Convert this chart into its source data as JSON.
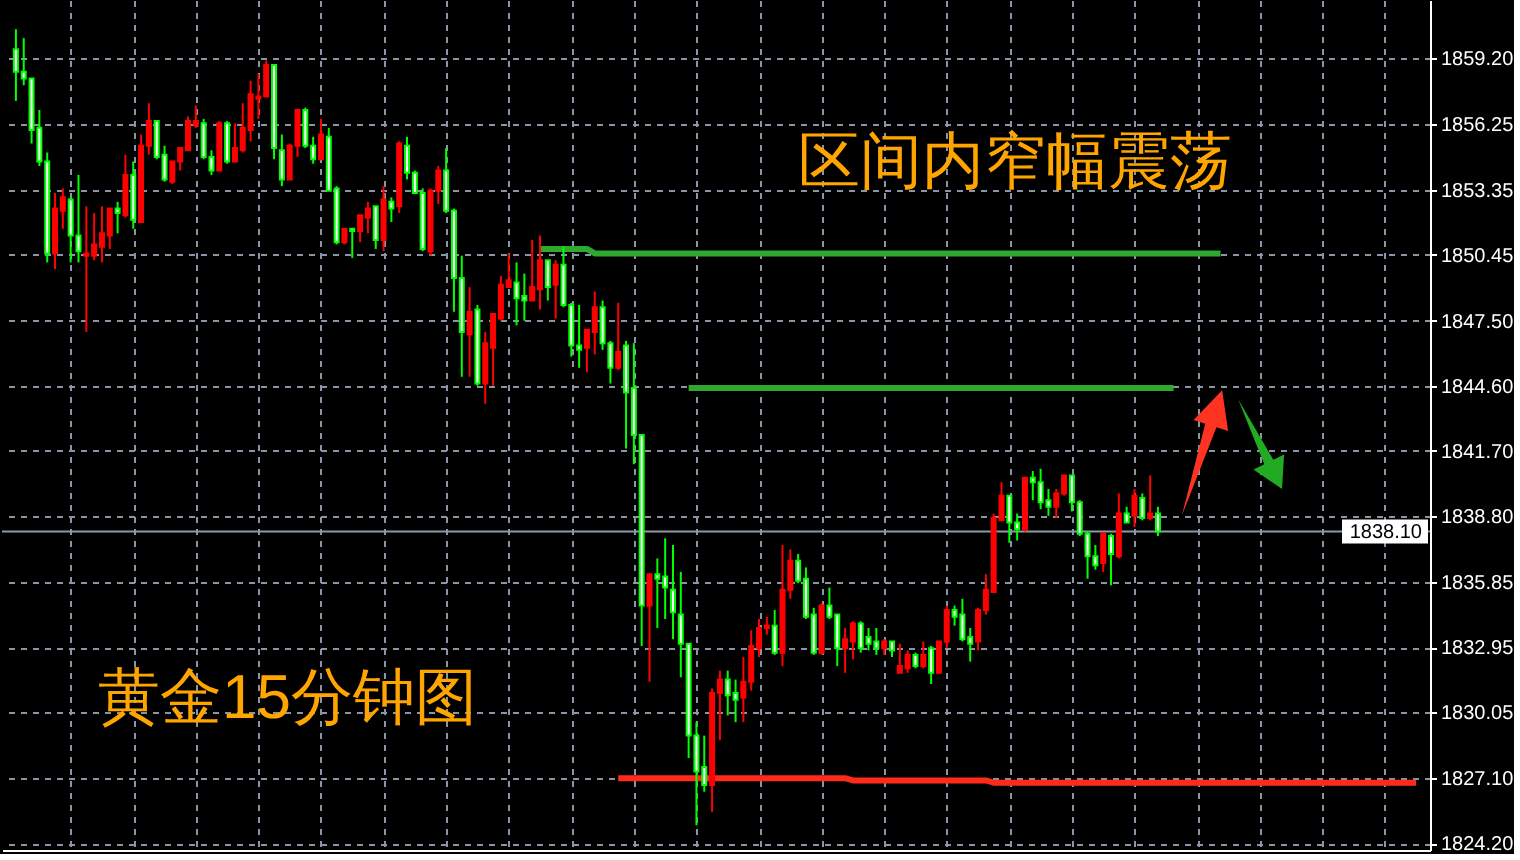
{
  "chart_data": {
    "type": "candlestick",
    "title": "黄金15分钟图",
    "annotations": [
      "区间内窄幅震荡"
    ],
    "categories": [
      null,
      null,
      null,
      null,
      null,
      null,
      null,
      null,
      null,
      null,
      null,
      null,
      null,
      null,
      null,
      null,
      null,
      null,
      null,
      null,
      null,
      null,
      null,
      null,
      null,
      null,
      null,
      null,
      null,
      null,
      null,
      null,
      null,
      null,
      null,
      null,
      null,
      null,
      null,
      null,
      null,
      null,
      null,
      null,
      null,
      null,
      null,
      null,
      null,
      null,
      null,
      null,
      null,
      null,
      null,
      null,
      null,
      null,
      null,
      null,
      null,
      null,
      null,
      null,
      null,
      null,
      null,
      null,
      null,
      null,
      null,
      null,
      null,
      null,
      null,
      null,
      null,
      null,
      null,
      null,
      null,
      null,
      null,
      null,
      null,
      null,
      null,
      null,
      null,
      null,
      null,
      null,
      null,
      null,
      null,
      null,
      null,
      null,
      null,
      null,
      null,
      null,
      null,
      null,
      null,
      null,
      null,
      null,
      null,
      null,
      null,
      null,
      null,
      null,
      null,
      null,
      null,
      null,
      null,
      null,
      null,
      null,
      null,
      null,
      null,
      null,
      null,
      null,
      null,
      null,
      null,
      null,
      null,
      null,
      null,
      null,
      null,
      null,
      null,
      null,
      null,
      null,
      null,
      null,
      null,
      null,
      null,
      null,
      null,
      null,
      null,
      null,
      null,
      null,
      null,
      null,
      null,
      null,
      null,
      null,
      null,
      null,
      null,
      null,
      null,
      null,
      null,
      null,
      null,
      null,
      null,
      null,
      null,
      null,
      null,
      null,
      null,
      null,
      null,
      null
    ],
    "ohlc": [
      [
        1859.6,
        1860.5,
        1857.3,
        1858.6
      ],
      [
        1858.6,
        1860.1,
        1858.0,
        1858.3
      ],
      [
        1858.3,
        1858.3,
        1855.4,
        1856.0
      ],
      [
        1856.1,
        1856.9,
        1854.4,
        1854.6
      ],
      [
        1854.6,
        1855.0,
        1850.1,
        1850.5
      ],
      [
        1850.5,
        1853.2,
        1849.8,
        1852.5
      ],
      [
        1852.4,
        1853.4,
        1851.6,
        1853.0
      ],
      [
        1852.9,
        1853.0,
        1850.1,
        1851.3
      ],
      [
        1851.3,
        1854.0,
        1850.1,
        1850.6
      ],
      [
        1850.4,
        1852.6,
        1847.0,
        1850.5
      ],
      [
        1850.4,
        1852.3,
        1850.2,
        1850.9
      ],
      [
        1850.8,
        1852.6,
        1850.1,
        1851.4
      ],
      [
        1851.3,
        1852.5,
        1850.7,
        1852.5
      ],
      [
        1852.5,
        1852.8,
        1851.4,
        1852.3
      ],
      [
        1852.2,
        1854.9,
        1852.1,
        1854.0
      ],
      [
        1854.0,
        1854.6,
        1851.6,
        1852.0
      ],
      [
        1851.9,
        1855.8,
        1851.9,
        1855.3
      ],
      [
        1855.3,
        1857.2,
        1854.9,
        1856.4
      ],
      [
        1856.4,
        1856.4,
        1854.7,
        1854.8
      ],
      [
        1854.9,
        1855.3,
        1853.7,
        1853.8
      ],
      [
        1853.7,
        1854.6,
        1853.6,
        1854.6
      ],
      [
        1854.6,
        1855.2,
        1854.2,
        1855.2
      ],
      [
        1855.1,
        1856.6,
        1855.1,
        1856.4
      ],
      [
        1856.2,
        1857.1,
        1856.1,
        1856.4
      ],
      [
        1856.3,
        1856.5,
        1854.7,
        1854.8
      ],
      [
        1854.8,
        1855.1,
        1854.0,
        1854.2
      ],
      [
        1854.2,
        1856.4,
        1854.2,
        1856.3
      ],
      [
        1856.3,
        1856.4,
        1854.5,
        1854.6
      ],
      [
        1854.6,
        1856.3,
        1854.6,
        1855.2
      ],
      [
        1855.1,
        1857.2,
        1855.0,
        1856.1
      ],
      [
        1856.0,
        1858.2,
        1855.5,
        1857.6
      ],
      [
        1857.4,
        1858.5,
        1856.5,
        1857.5
      ],
      [
        1857.5,
        1859.1,
        1857.5,
        1858.9
      ],
      [
        1858.9,
        1858.9,
        1854.7,
        1855.2
      ],
      [
        1855.1,
        1855.8,
        1853.5,
        1853.8
      ],
      [
        1853.8,
        1855.4,
        1853.8,
        1855.3
      ],
      [
        1855.3,
        1856.9,
        1854.8,
        1856.9
      ],
      [
        1856.9,
        1857.0,
        1855.2,
        1855.3
      ],
      [
        1855.3,
        1855.7,
        1854.5,
        1854.7
      ],
      [
        1854.7,
        1856.5,
        1854.7,
        1855.8
      ],
      [
        1855.7,
        1856.1,
        1853.3,
        1853.3
      ],
      [
        1853.4,
        1853.5,
        1850.9,
        1851.0
      ],
      [
        1851.0,
        1851.6,
        1850.9,
        1851.6
      ],
      [
        1851.6,
        1851.6,
        1850.3,
        1851.5
      ],
      [
        1851.5,
        1852.2,
        1851.0,
        1852.2
      ],
      [
        1852.1,
        1852.8,
        1851.4,
        1852.5
      ],
      [
        1852.6,
        1852.6,
        1850.7,
        1851.1
      ],
      [
        1851.1,
        1853.5,
        1850.6,
        1852.9
      ],
      [
        1852.8,
        1853.0,
        1851.9,
        1852.5
      ],
      [
        1852.6,
        1855.5,
        1852.3,
        1855.4
      ],
      [
        1855.3,
        1855.7,
        1853.8,
        1854.1
      ],
      [
        1854.1,
        1854.2,
        1853.2,
        1853.2
      ],
      [
        1853.2,
        1853.4,
        1850.6,
        1850.7
      ],
      [
        1850.6,
        1853.4,
        1850.4,
        1853.3
      ],
      [
        1853.3,
        1854.4,
        1852.7,
        1854.2
      ],
      [
        1854.2,
        1855.2,
        1852.3,
        1852.4
      ],
      [
        1852.4,
        1852.5,
        1847.9,
        1849.4
      ],
      [
        1849.4,
        1850.4,
        1845.0,
        1847.0
      ],
      [
        1846.9,
        1849.0,
        1845.0,
        1847.9
      ],
      [
        1848.0,
        1848.2,
        1844.6,
        1844.7
      ],
      [
        1844.7,
        1847.0,
        1843.8,
        1846.5
      ],
      [
        1846.3,
        1847.8,
        1844.6,
        1847.8
      ],
      [
        1847.6,
        1849.5,
        1847.5,
        1849.1
      ],
      [
        1849.0,
        1850.5,
        1849.0,
        1849.3
      ],
      [
        1849.2,
        1850.1,
        1847.3,
        1848.5
      ],
      [
        1848.6,
        1849.6,
        1847.5,
        1848.4
      ],
      [
        1848.4,
        1851.1,
        1848.4,
        1849.0
      ],
      [
        1848.9,
        1851.3,
        1848.0,
        1850.2
      ],
      [
        1850.2,
        1850.2,
        1848.4,
        1849.0
      ],
      [
        1849.1,
        1850.2,
        1847.6,
        1850.0
      ],
      [
        1850.0,
        1850.8,
        1848.1,
        1848.2
      ],
      [
        1848.2,
        1848.3,
        1845.9,
        1846.4
      ],
      [
        1846.4,
        1848.2,
        1845.4,
        1846.2
      ],
      [
        1846.3,
        1847.1,
        1845.2,
        1847.1
      ],
      [
        1847.0,
        1848.8,
        1846.0,
        1848.1
      ],
      [
        1848.1,
        1848.4,
        1846.2,
        1846.5
      ],
      [
        1846.5,
        1846.6,
        1844.7,
        1845.4
      ],
      [
        1845.4,
        1848.3,
        1845.3,
        1846.1
      ],
      [
        1846.4,
        1846.6,
        1841.8,
        1844.3
      ],
      [
        1844.5,
        1846.5,
        1841.1,
        1842.4
      ],
      [
        1842.4,
        1842.4,
        1833.0,
        1834.8
      ],
      [
        1834.8,
        1836.2,
        1831.4,
        1836.2
      ],
      [
        1836.2,
        1836.9,
        1833.8,
        1836.0
      ],
      [
        1836.1,
        1837.8,
        1834.2,
        1835.6
      ],
      [
        1835.5,
        1837.5,
        1833.3,
        1834.5
      ],
      [
        1834.4,
        1836.3,
        1831.6,
        1833.1
      ],
      [
        1833.1,
        1833.1,
        1828.0,
        1829.0
      ],
      [
        1829.0,
        1829.6,
        1825.0,
        1827.4
      ],
      [
        1827.6,
        1829.0,
        1826.5,
        1826.8
      ],
      [
        1826.8,
        1831.1,
        1825.6,
        1830.9
      ],
      [
        1830.9,
        1831.9,
        1828.8,
        1831.5
      ],
      [
        1831.5,
        1831.9,
        1829.9,
        1830.8
      ],
      [
        1830.9,
        1831.5,
        1829.6,
        1830.6
      ],
      [
        1830.7,
        1832.5,
        1829.6,
        1831.4
      ],
      [
        1831.4,
        1833.7,
        1831.0,
        1833.0
      ],
      [
        1832.9,
        1834.2,
        1832.5,
        1833.8
      ],
      [
        1833.8,
        1834.3,
        1833.5,
        1833.9
      ],
      [
        1833.9,
        1834.6,
        1832.6,
        1832.7
      ],
      [
        1832.7,
        1837.5,
        1832.1,
        1835.5
      ],
      [
        1835.5,
        1837.3,
        1835.1,
        1836.8
      ],
      [
        1836.8,
        1837.1,
        1835.8,
        1835.9
      ],
      [
        1836.0,
        1836.5,
        1834.2,
        1834.3
      ],
      [
        1834.4,
        1834.7,
        1832.6,
        1832.7
      ],
      [
        1832.7,
        1834.9,
        1832.6,
        1834.8
      ],
      [
        1834.8,
        1835.6,
        1834.2,
        1834.3
      ],
      [
        1834.4,
        1834.4,
        1832.1,
        1832.9
      ],
      [
        1832.9,
        1833.8,
        1831.8,
        1833.3
      ],
      [
        1833.2,
        1834.1,
        1832.4,
        1834.0
      ],
      [
        1834.0,
        1834.1,
        1832.7,
        1832.9
      ],
      [
        1833.4,
        1833.8,
        1832.8,
        1833.1
      ],
      [
        1833.2,
        1833.8,
        1832.6,
        1832.9
      ],
      [
        1832.9,
        1833.3,
        1832.6,
        1833.2
      ],
      [
        1833.2,
        1833.2,
        1832.5,
        1832.8
      ],
      [
        1831.8,
        1833.1,
        1831.8,
        1832.1
      ],
      [
        1832.0,
        1832.8,
        1831.8,
        1832.6
      ],
      [
        1832.6,
        1832.7,
        1832.0,
        1832.1
      ],
      [
        1832.1,
        1833.2,
        1832.0,
        1832.6
      ],
      [
        1832.9,
        1833.0,
        1831.3,
        1831.8
      ],
      [
        1831.8,
        1833.2,
        1831.8,
        1833.2
      ],
      [
        1833.2,
        1834.8,
        1832.9,
        1834.6
      ],
      [
        1834.6,
        1834.8,
        1833.9,
        1834.3
      ],
      [
        1834.4,
        1835.1,
        1833.2,
        1833.3
      ],
      [
        1833.4,
        1833.8,
        1832.3,
        1833.1
      ],
      [
        1833.2,
        1834.7,
        1832.8,
        1834.6
      ],
      [
        1834.6,
        1836.2,
        1834.4,
        1835.5
      ],
      [
        1835.4,
        1838.9,
        1835.4,
        1838.7
      ],
      [
        1838.6,
        1840.3,
        1838.6,
        1839.7
      ],
      [
        1839.7,
        1839.7,
        1837.6,
        1838.5
      ],
      [
        1838.5,
        1838.9,
        1837.7,
        1838.2
      ],
      [
        1838.2,
        1840.5,
        1838.1,
        1840.5
      ],
      [
        1840.5,
        1840.8,
        1839.5,
        1840.3
      ],
      [
        1840.3,
        1840.9,
        1839.1,
        1839.4
      ],
      [
        1839.5,
        1840.0,
        1838.8,
        1839.2
      ],
      [
        1839.2,
        1840.0,
        1838.7,
        1839.8
      ],
      [
        1839.8,
        1840.6,
        1839.7,
        1840.6
      ],
      [
        1840.6,
        1840.6,
        1839.0,
        1839.4
      ],
      [
        1839.4,
        1839.5,
        1837.9,
        1838.0
      ],
      [
        1838.0,
        1838.1,
        1836.0,
        1837.0
      ],
      [
        1837.0,
        1837.5,
        1836.4,
        1836.6
      ],
      [
        1836.7,
        1838.0,
        1836.3,
        1838.0
      ],
      [
        1837.9,
        1838.0,
        1835.7,
        1837.1
      ],
      [
        1837.0,
        1839.8,
        1836.9,
        1838.9
      ],
      [
        1838.9,
        1839.2,
        1838.5,
        1838.5
      ],
      [
        1838.8,
        1840.0,
        1838.3,
        1839.7
      ],
      [
        1839.6,
        1839.8,
        1838.6,
        1838.7
      ],
      [
        1838.7,
        1840.6,
        1838.6,
        1838.9
      ],
      [
        1838.9,
        1839.2,
        1837.9,
        1838.1
      ],
      null,
      null,
      null,
      null,
      null,
      null,
      null,
      null,
      null,
      null,
      null,
      null,
      null,
      null,
      null,
      null,
      null,
      null,
      null,
      null,
      null,
      null,
      null,
      null,
      null,
      null,
      null,
      null,
      null,
      null,
      null,
      null,
      null
    ],
    "colors": [
      "#00ff00",
      "#00ff00",
      "#00ff00",
      "#00ff00",
      "#00ff00",
      "#ff0000",
      "#ff0000",
      "#00ff00",
      "#00ff00",
      "#ff0000",
      "#ff0000",
      "#ff0000",
      "#ff0000",
      "#00ff00",
      "#ff0000",
      "#00ff00",
      "#ff0000",
      "#ff0000",
      "#00ff00",
      "#00ff00",
      "#ff0000",
      "#ff0000",
      "#ff0000",
      "#ff0000",
      "#00ff00",
      "#00ff00",
      "#ff0000",
      "#00ff00",
      "#ff0000",
      "#ff0000",
      "#ff0000",
      "#ff0000",
      "#ff0000",
      "#00ff00",
      "#00ff00",
      "#ff0000",
      "#ff0000",
      "#00ff00",
      "#00ff00",
      "#ff0000",
      "#00ff00",
      "#00ff00",
      "#ff0000",
      "#00ff00",
      "#ff0000",
      "#ff0000",
      "#00ff00",
      "#ff0000",
      "#00ff00",
      "#ff0000",
      "#00ff00",
      "#00ff00",
      "#00ff00",
      "#ff0000",
      "#ff0000",
      "#00ff00",
      "#00ff00",
      "#00ff00",
      "#ff0000",
      "#00ff00",
      "#ff0000",
      "#ff0000",
      "#ff0000",
      "#ff0000",
      "#00ff00",
      "#00ff00",
      "#ff0000",
      "#ff0000",
      "#00ff00",
      "#ff0000",
      "#00ff00",
      "#00ff00",
      "#00ff00",
      "#ff0000",
      "#ff0000",
      "#00ff00",
      "#00ff00",
      "#ff0000",
      "#00ff00",
      "#00ff00",
      "#00ff00",
      "#ff0000",
      "#00ff00",
      "#00ff00",
      "#00ff00",
      "#00ff00",
      "#00ff00",
      "#00ff00",
      "#00ff00",
      "#ff0000",
      "#ff0000",
      "#00ff00",
      "#00ff00",
      "#ff0000",
      "#ff0000",
      "#ff0000",
      "#ff0000",
      "#00ff00",
      "#ff0000",
      "#ff0000",
      "#00ff00",
      "#00ff00",
      "#00ff00",
      "#ff0000",
      "#00ff00",
      "#00ff00",
      "#ff0000",
      "#ff0000",
      "#00ff00",
      "#00ff00",
      "#00ff00",
      "#ff0000",
      "#00ff00",
      "#ff0000",
      "#ff0000",
      "#00ff00",
      "#ff0000",
      "#00ff00",
      "#ff0000",
      "#ff0000",
      "#00ff00",
      "#00ff00",
      "#00ff00",
      "#ff0000",
      "#ff0000",
      "#ff0000",
      "#ff0000",
      "#00ff00",
      "#00ff00",
      "#ff0000",
      "#00ff00",
      "#00ff00",
      "#00ff00",
      "#ff0000",
      "#ff0000",
      "#00ff00",
      "#00ff00",
      "#00ff00",
      "#00ff00",
      "#ff0000",
      "#00ff00",
      "#ff0000",
      "#00ff00",
      "#ff0000",
      "#00ff00",
      "#ff0000",
      "#00ff00",
      null,
      null,
      null,
      null,
      null,
      null,
      null,
      null,
      null,
      null,
      null,
      null,
      null,
      null,
      null,
      null,
      null,
      null,
      null,
      null,
      null,
      null,
      null,
      null,
      null,
      null,
      null,
      null,
      null,
      null,
      null,
      null,
      null
    ],
    "series": [
      {
        "type": "line",
        "color": "#2fa82f",
        "values": [
          null,
          null,
          null,
          null,
          null,
          null,
          null,
          null,
          null,
          null,
          null,
          null,
          null,
          null,
          null,
          null,
          null,
          null,
          null,
          null,
          null,
          null,
          null,
          null,
          null,
          null,
          null,
          null,
          null,
          null,
          null,
          null,
          null,
          null,
          null,
          null,
          null,
          null,
          null,
          null,
          null,
          null,
          null,
          null,
          null,
          null,
          null,
          null,
          null,
          null,
          null,
          null,
          null,
          null,
          null,
          null,
          null,
          null,
          null,
          null,
          null,
          null,
          null,
          null,
          null,
          null,
          null,
          1850.7,
          1850.7,
          1850.7,
          1850.7,
          1850.7,
          1850.7,
          1850.7,
          1850.5,
          1850.5,
          1850.5,
          1850.5,
          1850.5,
          1850.5,
          1850.5,
          1850.5,
          1850.5,
          1850.5,
          1850.5,
          1850.5,
          1850.5,
          1850.5,
          1850.5,
          1850.5,
          1850.5,
          1850.5,
          1850.5,
          1850.5,
          1850.5,
          1850.5,
          1850.5,
          1850.5,
          1850.5,
          1850.5,
          1850.5,
          1850.5,
          1850.5,
          1850.5,
          1850.5,
          1850.5,
          1850.5,
          1850.5,
          1850.5,
          1850.5,
          1850.5,
          1850.5,
          1850.5,
          1850.5,
          1850.5,
          1850.5,
          1850.5,
          1850.5,
          1850.5,
          1850.5,
          1850.5,
          1850.5,
          1850.5,
          1850.5,
          1850.5,
          1850.5,
          1850.5,
          1850.5,
          1850.5,
          1850.5,
          1850.5,
          1850.5,
          1850.5,
          1850.5,
          1850.5,
          1850.5,
          1850.5,
          1850.5,
          1850.5,
          1850.5,
          1850.5,
          1850.5,
          1850.5,
          1850.5,
          1850.5,
          1850.5,
          1850.5,
          1850.5,
          1850.5,
          1850.5,
          1850.5,
          1850.5,
          1850.5,
          1850.5,
          1850.5,
          null,
          null,
          null,
          null,
          null,
          null,
          null,
          null,
          null,
          null,
          null,
          null,
          null,
          null,
          null,
          null,
          null,
          null,
          null,
          null,
          null,
          null,
          null,
          null,
          null
        ]
      },
      {
        "type": "line",
        "color": "#2fa82f",
        "values": [
          null,
          null,
          null,
          null,
          null,
          null,
          null,
          null,
          null,
          null,
          null,
          null,
          null,
          null,
          null,
          null,
          null,
          null,
          null,
          null,
          null,
          null,
          null,
          null,
          null,
          null,
          null,
          null,
          null,
          null,
          null,
          null,
          null,
          null,
          null,
          null,
          null,
          null,
          null,
          null,
          null,
          null,
          null,
          null,
          null,
          null,
          null,
          null,
          null,
          null,
          null,
          null,
          null,
          null,
          null,
          null,
          null,
          null,
          null,
          null,
          null,
          null,
          null,
          null,
          null,
          null,
          null,
          null,
          null,
          null,
          null,
          null,
          null,
          null,
          null,
          null,
          null,
          null,
          null,
          null,
          null,
          null,
          null,
          null,
          null,
          null,
          1844.5,
          1844.5,
          1844.5,
          1844.5,
          1844.5,
          1844.5,
          1844.5,
          1844.5,
          1844.5,
          1844.5,
          1844.5,
          1844.5,
          1844.5,
          1844.5,
          1844.5,
          1844.5,
          1844.5,
          1844.5,
          1844.5,
          1844.5,
          1844.5,
          1844.5,
          1844.5,
          1844.5,
          1844.5,
          1844.5,
          1844.5,
          1844.5,
          1844.5,
          1844.5,
          1844.5,
          1844.5,
          1844.5,
          1844.5,
          1844.5,
          1844.5,
          1844.5,
          1844.5,
          1844.5,
          1844.5,
          1844.5,
          1844.5,
          1844.5,
          1844.5,
          1844.5,
          1844.5,
          1844.5,
          1844.5,
          1844.5,
          1844.5,
          1844.5,
          1844.5,
          1844.5,
          1844.5,
          1844.5,
          1844.5,
          1844.5,
          1844.5,
          1844.5,
          1844.5,
          1844.5,
          1844.5,
          1844.5,
          null,
          null,
          null,
          null,
          null,
          null,
          null,
          null,
          null,
          null,
          null,
          null,
          null,
          null,
          null,
          null,
          null,
          null,
          null,
          null,
          null,
          null,
          null,
          null,
          null,
          null,
          null,
          null,
          null,
          null,
          null
        ]
      },
      {
        "type": "line",
        "color": "#ff2a1a",
        "values": [
          null,
          null,
          null,
          null,
          null,
          null,
          null,
          null,
          null,
          null,
          null,
          null,
          null,
          null,
          null,
          null,
          null,
          null,
          null,
          null,
          null,
          null,
          null,
          null,
          null,
          null,
          null,
          null,
          null,
          null,
          null,
          null,
          null,
          null,
          null,
          null,
          null,
          null,
          null,
          null,
          null,
          null,
          null,
          null,
          null,
          null,
          null,
          null,
          null,
          null,
          null,
          null,
          null,
          null,
          null,
          null,
          null,
          null,
          null,
          null,
          null,
          null,
          null,
          null,
          null,
          null,
          null,
          null,
          null,
          null,
          null,
          null,
          null,
          null,
          null,
          null,
          null,
          1827.1,
          1827.1,
          1827.1,
          1827.1,
          1827.1,
          1827.1,
          1827.1,
          1827.1,
          1827.1,
          1827.1,
          1827.1,
          1827.1,
          1827.1,
          1827.1,
          1827.1,
          1827.1,
          1827.1,
          1827.1,
          1827.1,
          1827.1,
          1827.1,
          1827.1,
          1827.1,
          1827.1,
          1827.1,
          1827.1,
          1827.1,
          1827.1,
          1827.1,
          1827.1,
          1827.0,
          1827.0,
          1827.0,
          1827.0,
          1827.0,
          1827.0,
          1827.0,
          1827.0,
          1827.0,
          1827.0,
          1827.0,
          1827.0,
          1827.0,
          1827.0,
          1827.0,
          1827.0,
          1827.0,
          1827.0,
          1826.9,
          1826.9,
          1826.9,
          1826.9,
          1826.9,
          1826.9,
          1826.9,
          1826.9,
          1826.9,
          1826.9,
          1826.9,
          1826.9,
          1826.9,
          1826.9,
          1826.9,
          1826.9,
          1826.9,
          1826.9,
          1826.9,
          1826.9,
          1826.9,
          1826.9,
          1826.9,
          1826.9,
          1826.9,
          1826.9,
          1826.9,
          1826.9,
          1826.9,
          1826.9,
          1826.9,
          1826.9,
          1826.9,
          1826.9,
          1826.9,
          1826.9,
          1826.9,
          1826.9,
          1826.9,
          1826.9,
          1826.9,
          1826.9,
          1826.9,
          1826.9,
          1826.9,
          1826.9,
          1826.9,
          1826.9,
          1826.9,
          1826.9,
          1826.9,
          1826.9,
          1826.9,
          1826.9,
          1826.9
        ]
      }
    ],
    "ylim": [
      1823.9,
      1861.8
    ],
    "yticks": [
      {
        "value": 1859.2,
        "label": "1859.20"
      },
      {
        "value": 1856.25,
        "label": "1856.25"
      },
      {
        "value": 1853.35,
        "label": "1853.35"
      },
      {
        "value": 1850.45,
        "label": "1850.45"
      },
      {
        "value": 1847.5,
        "label": "1847.50"
      },
      {
        "value": 1844.6,
        "label": "1844.60"
      },
      {
        "value": 1841.7,
        "label": "1841.70"
      },
      {
        "value": 1838.8,
        "label": "1838.80"
      },
      {
        "value": 1835.85,
        "label": "1835.85"
      },
      {
        "value": 1832.95,
        "label": "1832.95"
      },
      {
        "value": 1830.05,
        "label": "1830.05"
      },
      {
        "value": 1827.1,
        "label": "1827.10"
      },
      {
        "value": 1824.2,
        "label": "1824.20"
      }
    ],
    "ref_lines": [
      {
        "axis": "y",
        "value": 1838.1,
        "label": "1838.10",
        "color": "#8c9aa8"
      }
    ],
    "grid": true,
    "tick_labels": "y"
  }
}
